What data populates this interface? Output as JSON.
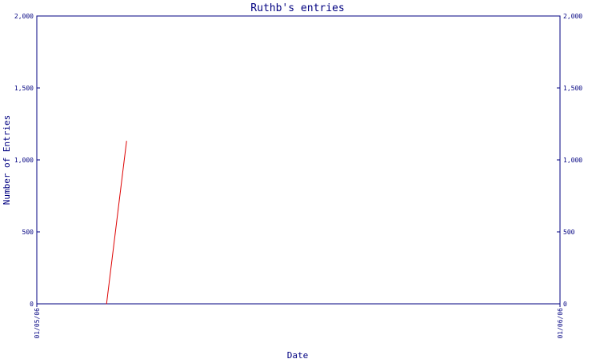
{
  "chart_data": {
    "type": "line",
    "title": "Ruthb's entries",
    "xlabel": "Date",
    "ylabel": "Number of Entries",
    "x_ticks": [
      "01/05/06",
      "01/06/06"
    ],
    "y_ticks": [
      0,
      500,
      1000,
      1500,
      2000
    ],
    "y_tick_labels": [
      "0",
      "500",
      "1,000",
      "1,500",
      "2,000"
    ],
    "xlim": [
      "2006-01-05",
      "2006-01-06"
    ],
    "ylim": [
      0,
      2000
    ],
    "grid": false,
    "legend": "none",
    "series": [
      {
        "points": [
          {
            "x": "2006-01-05T03:12",
            "y": 0
          },
          {
            "x": "2006-01-05T04:07",
            "y": 1130
          }
        ],
        "color": "#dd0000"
      }
    ],
    "colors": {
      "axis": "#000080",
      "text": "#000080",
      "line": "#dd0000"
    }
  }
}
